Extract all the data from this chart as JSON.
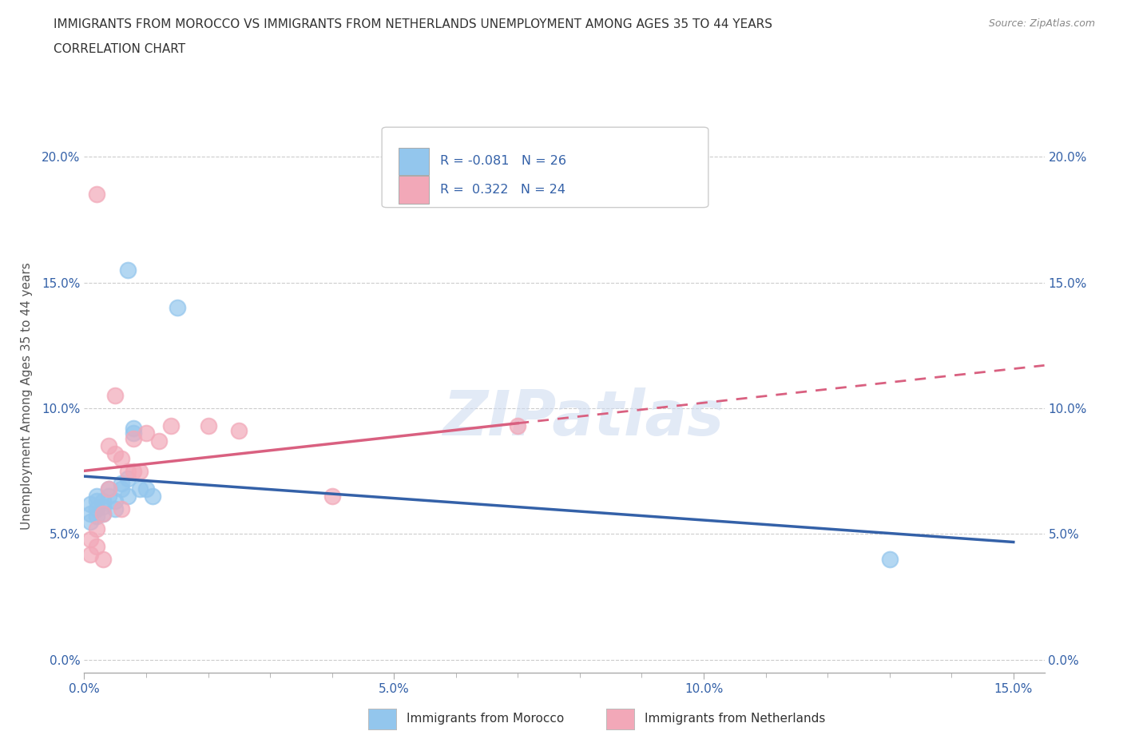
{
  "title_line1": "IMMIGRANTS FROM MOROCCO VS IMMIGRANTS FROM NETHERLANDS UNEMPLOYMENT AMONG AGES 35 TO 44 YEARS",
  "title_line2": "CORRELATION CHART",
  "source": "Source: ZipAtlas.com",
  "ylabel": "Unemployment Among Ages 35 to 44 years",
  "xlim": [
    0.0,
    0.155
  ],
  "ylim": [
    -0.005,
    0.215
  ],
  "morocco_x": [
    0.001,
    0.001,
    0.001,
    0.002,
    0.002,
    0.002,
    0.002,
    0.003,
    0.003,
    0.003,
    0.004,
    0.004,
    0.005,
    0.005,
    0.006,
    0.006,
    0.007,
    0.007,
    0.008,
    0.008,
    0.009,
    0.01,
    0.011,
    0.015,
    0.13,
    0.007
  ],
  "morocco_y": [
    0.062,
    0.058,
    0.055,
    0.065,
    0.063,
    0.06,
    0.057,
    0.063,
    0.061,
    0.058,
    0.068,
    0.065,
    0.063,
    0.06,
    0.07,
    0.068,
    0.072,
    0.065,
    0.09,
    0.092,
    0.068,
    0.068,
    0.065,
    0.14,
    0.04,
    0.155
  ],
  "netherlands_x": [
    0.001,
    0.001,
    0.002,
    0.002,
    0.003,
    0.003,
    0.004,
    0.004,
    0.005,
    0.005,
    0.006,
    0.006,
    0.007,
    0.008,
    0.009,
    0.01,
    0.012,
    0.014,
    0.02,
    0.025,
    0.04,
    0.002,
    0.008,
    0.07
  ],
  "netherlands_y": [
    0.048,
    0.042,
    0.052,
    0.045,
    0.058,
    0.04,
    0.085,
    0.068,
    0.105,
    0.082,
    0.08,
    0.06,
    0.075,
    0.075,
    0.075,
    0.09,
    0.087,
    0.093,
    0.093,
    0.091,
    0.065,
    0.185,
    0.088,
    0.093
  ],
  "morocco_color": "#93C6ED",
  "netherlands_color": "#F2A8B8",
  "morocco_line_color": "#3461A8",
  "netherlands_line_color": "#D96080",
  "legend_r_morocco": "R = -0.081",
  "legend_n_morocco": "N = 26",
  "legend_r_netherlands": "R =  0.322",
  "legend_n_netherlands": "N = 24",
  "watermark": "ZIPatlas",
  "background_color": "#ffffff",
  "grid_color": "#cccccc",
  "x_ticks": [
    0.0,
    0.05,
    0.1,
    0.15
  ],
  "y_ticks": [
    0.0,
    0.05,
    0.1,
    0.15,
    0.2
  ]
}
